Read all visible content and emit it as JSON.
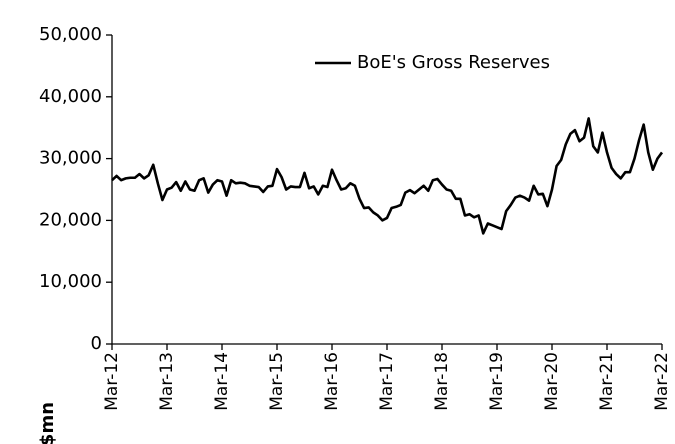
{
  "chart_data": {
    "type": "line",
    "y_label": "$mn",
    "categories": [
      "Mar-12",
      null,
      null,
      null,
      null,
      null,
      null,
      null,
      null,
      null,
      null,
      null,
      "Mar-13",
      null,
      null,
      null,
      null,
      null,
      null,
      null,
      null,
      null,
      null,
      null,
      "Mar-14",
      null,
      null,
      null,
      null,
      null,
      null,
      null,
      null,
      null,
      null,
      null,
      "Mar-15",
      null,
      null,
      null,
      null,
      null,
      null,
      null,
      null,
      null,
      null,
      null,
      "Mar-16",
      null,
      null,
      null,
      null,
      null,
      null,
      null,
      null,
      null,
      null,
      null,
      "Mar-17",
      null,
      null,
      null,
      null,
      null,
      null,
      null,
      null,
      null,
      null,
      null,
      "Mar-18",
      null,
      null,
      null,
      null,
      null,
      null,
      null,
      null,
      null,
      null,
      null,
      "Mar-19",
      null,
      null,
      null,
      null,
      null,
      null,
      null,
      null,
      null,
      null,
      null,
      "Mar-20",
      null,
      null,
      null,
      null,
      null,
      null,
      null,
      null,
      null,
      null,
      null,
      "Mar-21",
      null,
      null,
      null,
      null,
      null,
      null,
      null,
      null,
      null,
      null,
      null,
      "Mar-22"
    ],
    "series": [
      {
        "name": "BoE's Gross Reserves",
        "color": "#000000",
        "values": [
          26500,
          27200,
          26500,
          26800,
          26900,
          26900,
          27500,
          26800,
          27300,
          29000,
          26000,
          23300,
          25000,
          25300,
          26200,
          24800,
          26300,
          25000,
          24800,
          26500,
          26800,
          24500,
          25800,
          26500,
          26300,
          24000,
          26500,
          26000,
          26100,
          26000,
          25600,
          25500,
          25400,
          24600,
          25500,
          25600,
          28300,
          27000,
          25000,
          25500,
          25400,
          25400,
          27700,
          25200,
          25500,
          24200,
          25600,
          25400,
          28200,
          26500,
          25000,
          25200,
          26000,
          25600,
          23500,
          22000,
          22100,
          21300,
          20800,
          20000,
          20400,
          22000,
          22200,
          22500,
          24500,
          24900,
          24400,
          25000,
          25600,
          24800,
          26500,
          26700,
          25800,
          25000,
          24800,
          23500,
          23500,
          20800,
          21000,
          20500,
          20800,
          17900,
          19500,
          19200,
          18900,
          18600,
          21500,
          22500,
          23700,
          24000,
          23700,
          23200,
          25600,
          24200,
          24300,
          22300,
          25000,
          28800,
          29800,
          32300,
          34000,
          34600,
          32800,
          33400,
          36500,
          32000,
          31000,
          34200,
          31000,
          28500,
          27500,
          26800,
          27800,
          27800,
          30000,
          33000,
          35500,
          31000,
          28200,
          30000,
          31000
        ]
      }
    ],
    "ylim": [
      0,
      50000
    ],
    "yticks": [
      0,
      {
        "value": 10000,
        "label": "10,000"
      },
      {
        "value": 20000,
        "label": "20,000"
      },
      {
        "value": 30000,
        "label": "30,000"
      },
      {
        "value": 40000,
        "label": "40,000"
      },
      {
        "value": 50000,
        "label": "50,000"
      }
    ],
    "legend": "top-right",
    "grid": false
  }
}
